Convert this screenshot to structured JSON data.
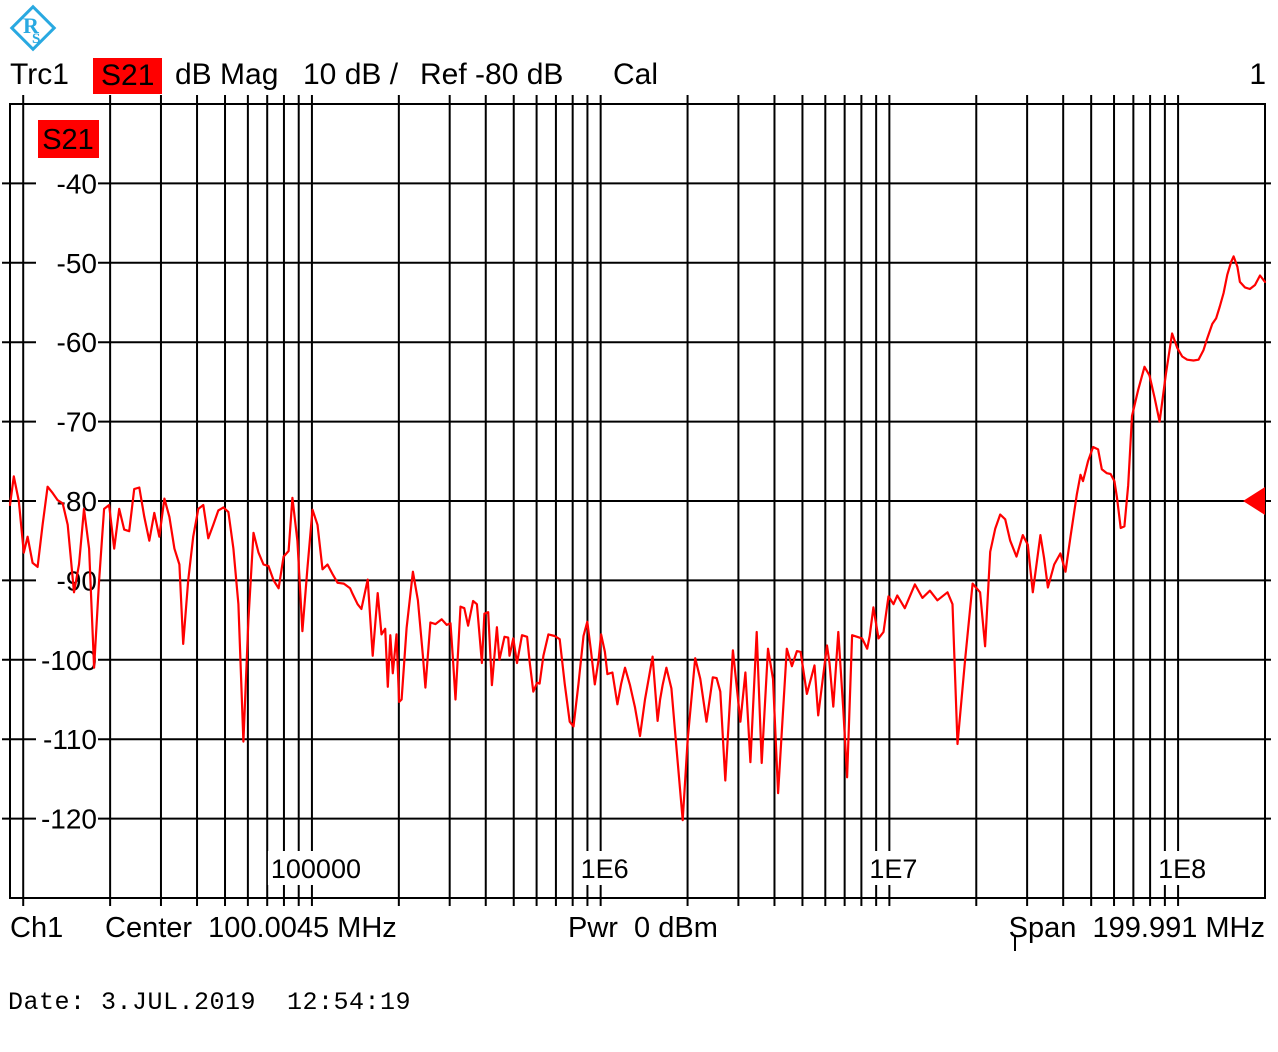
{
  "logo": {
    "name": "rohde-schwarz-logo",
    "color": "#29a9e1"
  },
  "header": {
    "trace_label": "Trc1",
    "parameter": "S21",
    "format": "dB Mag",
    "scale": "10 dB /",
    "reference": "Ref -80 dB",
    "cal_flag": "Cal",
    "trace_number": "1"
  },
  "plot": {
    "in_plot_label": "S21",
    "ref_marker": {
      "type": "ref-level-arrow",
      "level_db": -80
    }
  },
  "footer": {
    "channel": "Ch1",
    "center": "Center  100.0045 MHz",
    "power": "Pwr  0 dBm",
    "span": "Span  199.991 MHz"
  },
  "statusbar": {
    "date": "Date: 3.JUL.2019  12:54:19"
  },
  "colors": {
    "trace": "#ff0000",
    "grid": "#000000",
    "background": "#ffffff",
    "label_chip_bg": "#ff0000",
    "marker": "#ff0000",
    "logo_blue": "#29a9e1"
  },
  "chart_data": {
    "type": "line",
    "title": "Trc1 S21 dB Mag 10 dB / Ref -80 dB Cal",
    "x_axis": {
      "scale": "log",
      "unit": "Hz",
      "start_hz": 9000,
      "stop_hz": 200000000,
      "center": "100.0045 MHz",
      "span": "199.991 MHz",
      "tick_labels": [
        {
          "f": 100000,
          "text": "100000"
        },
        {
          "f": 1000000,
          "text": "1E6"
        },
        {
          "f": 10000000,
          "text": "1E7"
        },
        {
          "f": 100000000,
          "text": "1E8"
        }
      ],
      "minor_grid": "decades 2-9"
    },
    "y_axis": {
      "unit": "dB",
      "top_db": -30,
      "bottom_db": -130,
      "step_db": 10,
      "ref_level_db": -80,
      "tick_labels": [
        "-40",
        "-50",
        "-60",
        "-70",
        "-80",
        "-90",
        "-100",
        "-110",
        "-120"
      ]
    },
    "grid": true,
    "legend": "none",
    "series": [
      {
        "name": "S21",
        "color": "#ff0000",
        "x_encoding": "fraction along log axis from 9 kHz to 200 MHz",
        "points": [
          [
            0.0,
            -80.5
          ],
          [
            0.003,
            -76.9
          ],
          [
            0.007,
            -80.0
          ],
          [
            0.011,
            -86.5
          ],
          [
            0.014,
            -84.5
          ],
          [
            0.018,
            -87.8
          ],
          [
            0.022,
            -88.3
          ],
          [
            0.026,
            -83.0
          ],
          [
            0.03,
            -78.2
          ],
          [
            0.034,
            -79.0
          ],
          [
            0.038,
            -79.9
          ],
          [
            0.042,
            -80.3
          ],
          [
            0.046,
            -83.0
          ],
          [
            0.051,
            -91.5
          ],
          [
            0.055,
            -88.0
          ],
          [
            0.059,
            -81.0
          ],
          [
            0.063,
            -86.0
          ],
          [
            0.067,
            -101.0
          ],
          [
            0.071,
            -90.0
          ],
          [
            0.075,
            -81.0
          ],
          [
            0.079,
            -80.5
          ],
          [
            0.083,
            -86.0
          ],
          [
            0.087,
            -81.0
          ],
          [
            0.091,
            -83.6
          ],
          [
            0.095,
            -83.8
          ],
          [
            0.099,
            -78.5
          ],
          [
            0.103,
            -78.3
          ],
          [
            0.107,
            -82.0
          ],
          [
            0.111,
            -85.0
          ],
          [
            0.115,
            -81.5
          ],
          [
            0.119,
            -84.5
          ],
          [
            0.123,
            -79.7
          ],
          [
            0.127,
            -82.0
          ],
          [
            0.131,
            -86.0
          ],
          [
            0.135,
            -88.0
          ],
          [
            0.138,
            -98.0
          ],
          [
            0.142,
            -90.0
          ],
          [
            0.146,
            -84.5
          ],
          [
            0.15,
            -81.0
          ],
          [
            0.154,
            -80.5
          ],
          [
            0.158,
            -84.7
          ],
          [
            0.162,
            -83.0
          ],
          [
            0.166,
            -81.2
          ],
          [
            0.17,
            -80.8
          ],
          [
            0.174,
            -81.4
          ],
          [
            0.178,
            -86.0
          ],
          [
            0.182,
            -93.0
          ],
          [
            0.186,
            -110.3
          ],
          [
            0.19,
            -95.0
          ],
          [
            0.194,
            -84.0
          ],
          [
            0.198,
            -86.5
          ],
          [
            0.202,
            -88.0
          ],
          [
            0.206,
            -88.2
          ],
          [
            0.21,
            -90.0
          ],
          [
            0.214,
            -91.0
          ],
          [
            0.218,
            -87.0
          ],
          [
            0.222,
            -86.3
          ],
          [
            0.225,
            -79.6
          ],
          [
            0.229,
            -85.0
          ],
          [
            0.233,
            -96.4
          ],
          [
            0.237,
            -88.5
          ],
          [
            0.241,
            -81.1
          ],
          [
            0.245,
            -83.0
          ],
          [
            0.249,
            -88.6
          ],
          [
            0.253,
            -88.0
          ],
          [
            0.257,
            -89.2
          ],
          [
            0.261,
            -90.3
          ],
          [
            0.266,
            -90.4
          ],
          [
            0.271,
            -91.0
          ],
          [
            0.273,
            -91.7
          ],
          [
            0.277,
            -93.0
          ],
          [
            0.28,
            -93.6
          ],
          [
            0.285,
            -89.9
          ],
          [
            0.289,
            -99.5
          ],
          [
            0.293,
            -91.6
          ],
          [
            0.296,
            -96.8
          ],
          [
            0.299,
            -96.1
          ],
          [
            0.301,
            -103.4
          ],
          [
            0.303,
            -96.9
          ],
          [
            0.305,
            -101.7
          ],
          [
            0.308,
            -96.8
          ],
          [
            0.31,
            -105.3
          ],
          [
            0.312,
            -105.0
          ],
          [
            0.316,
            -96.0
          ],
          [
            0.321,
            -88.9
          ],
          [
            0.325,
            -92.5
          ],
          [
            0.329,
            -99.5
          ],
          [
            0.331,
            -103.5
          ],
          [
            0.335,
            -95.3
          ],
          [
            0.339,
            -95.5
          ],
          [
            0.344,
            -94.9
          ],
          [
            0.348,
            -95.6
          ],
          [
            0.351,
            -95.4
          ],
          [
            0.353,
            -100.0
          ],
          [
            0.355,
            -105.0
          ],
          [
            0.359,
            -93.3
          ],
          [
            0.362,
            -93.5
          ],
          [
            0.365,
            -95.7
          ],
          [
            0.369,
            -92.6
          ],
          [
            0.372,
            -93.0
          ],
          [
            0.376,
            -100.4
          ],
          [
            0.378,
            -94.2
          ],
          [
            0.381,
            -94.0
          ],
          [
            0.384,
            -103.2
          ],
          [
            0.388,
            -95.9
          ],
          [
            0.39,
            -100.0
          ],
          [
            0.394,
            -97.1
          ],
          [
            0.397,
            -97.2
          ],
          [
            0.398,
            -99.5
          ],
          [
            0.401,
            -97.3
          ],
          [
            0.404,
            -100.4
          ],
          [
            0.408,
            -96.9
          ],
          [
            0.412,
            -97.1
          ],
          [
            0.414,
            -100.2
          ],
          [
            0.417,
            -104.0
          ],
          [
            0.42,
            -102.9
          ],
          [
            0.422,
            -103.0
          ],
          [
            0.425,
            -99.5
          ],
          [
            0.429,
            -96.8
          ],
          [
            0.434,
            -97.0
          ],
          [
            0.438,
            -97.4
          ],
          [
            0.442,
            -103.0
          ],
          [
            0.446,
            -107.8
          ],
          [
            0.449,
            -108.4
          ],
          [
            0.453,
            -103.0
          ],
          [
            0.457,
            -97.0
          ],
          [
            0.46,
            -95.2
          ],
          [
            0.463,
            -99.0
          ],
          [
            0.466,
            -103.1
          ],
          [
            0.469,
            -100.0
          ],
          [
            0.471,
            -96.8
          ],
          [
            0.474,
            -99.0
          ],
          [
            0.476,
            -101.8
          ],
          [
            0.48,
            -101.6
          ],
          [
            0.484,
            -105.6
          ],
          [
            0.487,
            -103.0
          ],
          [
            0.49,
            -101.0
          ],
          [
            0.494,
            -103.2
          ],
          [
            0.498,
            -106.0
          ],
          [
            0.502,
            -109.6
          ],
          [
            0.506,
            -105.0
          ],
          [
            0.512,
            -99.6
          ],
          [
            0.516,
            -107.7
          ],
          [
            0.518,
            -105.0
          ],
          [
            0.52,
            -103.2
          ],
          [
            0.523,
            -101.0
          ],
          [
            0.527,
            -103.6
          ],
          [
            0.531,
            -111.0
          ],
          [
            0.536,
            -120.2
          ],
          [
            0.54,
            -110.0
          ],
          [
            0.546,
            -99.8
          ],
          [
            0.55,
            -102.4
          ],
          [
            0.555,
            -107.8
          ],
          [
            0.56,
            -102.2
          ],
          [
            0.563,
            -102.3
          ],
          [
            0.566,
            -104.0
          ],
          [
            0.57,
            -115.2
          ],
          [
            0.576,
            -98.8
          ],
          [
            0.582,
            -107.8
          ],
          [
            0.586,
            -101.6
          ],
          [
            0.59,
            -112.9
          ],
          [
            0.595,
            -96.5
          ],
          [
            0.599,
            -113.0
          ],
          [
            0.604,
            -98.6
          ],
          [
            0.608,
            -102.4
          ],
          [
            0.612,
            -116.8
          ],
          [
            0.619,
            -98.6
          ],
          [
            0.623,
            -100.8
          ],
          [
            0.627,
            -98.9
          ],
          [
            0.63,
            -99.0
          ],
          [
            0.635,
            -104.3
          ],
          [
            0.641,
            -100.7
          ],
          [
            0.644,
            -107.0
          ],
          [
            0.651,
            -98.2
          ],
          [
            0.653,
            -100.4
          ],
          [
            0.656,
            -105.9
          ],
          [
            0.66,
            -96.5
          ],
          [
            0.664,
            -106.3
          ],
          [
            0.667,
            -114.8
          ],
          [
            0.671,
            -96.9
          ],
          [
            0.675,
            -97.1
          ],
          [
            0.679,
            -97.3
          ],
          [
            0.683,
            -98.6
          ],
          [
            0.685,
            -97.0
          ],
          [
            0.688,
            -93.4
          ],
          [
            0.692,
            -97.3
          ],
          [
            0.696,
            -96.5
          ],
          [
            0.7,
            -92.0
          ],
          [
            0.704,
            -93.0
          ],
          [
            0.707,
            -91.9
          ],
          [
            0.713,
            -93.5
          ],
          [
            0.721,
            -90.5
          ],
          [
            0.727,
            -92.2
          ],
          [
            0.733,
            -91.3
          ],
          [
            0.739,
            -92.5
          ],
          [
            0.747,
            -91.5
          ],
          [
            0.751,
            -93.0
          ],
          [
            0.755,
            -110.6
          ],
          [
            0.761,
            -100.0
          ],
          [
            0.767,
            -90.4
          ],
          [
            0.773,
            -91.5
          ],
          [
            0.777,
            -98.3
          ],
          [
            0.781,
            -86.4
          ],
          [
            0.785,
            -83.5
          ],
          [
            0.789,
            -81.7
          ],
          [
            0.793,
            -82.3
          ],
          [
            0.797,
            -85.0
          ],
          [
            0.802,
            -87.0
          ],
          [
            0.807,
            -84.3
          ],
          [
            0.811,
            -85.5
          ],
          [
            0.815,
            -91.5
          ],
          [
            0.821,
            -84.3
          ],
          [
            0.824,
            -87.2
          ],
          [
            0.827,
            -90.9
          ],
          [
            0.832,
            -88.0
          ],
          [
            0.837,
            -86.6
          ],
          [
            0.841,
            -88.9
          ],
          [
            0.845,
            -84.5
          ],
          [
            0.85,
            -79.2
          ],
          [
            0.853,
            -76.7
          ],
          [
            0.855,
            -77.5
          ],
          [
            0.859,
            -75.0
          ],
          [
            0.863,
            -73.2
          ],
          [
            0.867,
            -73.5
          ],
          [
            0.87,
            -76.0
          ],
          [
            0.874,
            -76.5
          ],
          [
            0.877,
            -76.6
          ],
          [
            0.88,
            -77.5
          ],
          [
            0.882,
            -79.5
          ],
          [
            0.885,
            -83.4
          ],
          [
            0.888,
            -83.2
          ],
          [
            0.891,
            -78.0
          ],
          [
            0.894,
            -69.3
          ],
          [
            0.899,
            -66.0
          ],
          [
            0.904,
            -63.1
          ],
          [
            0.908,
            -64.2
          ],
          [
            0.912,
            -67.0
          ],
          [
            0.916,
            -70.0
          ],
          [
            0.921,
            -64.0
          ],
          [
            0.926,
            -58.9
          ],
          [
            0.93,
            -60.7
          ],
          [
            0.934,
            -61.8
          ],
          [
            0.938,
            -62.2
          ],
          [
            0.943,
            -62.3
          ],
          [
            0.947,
            -62.2
          ],
          [
            0.951,
            -61.0
          ],
          [
            0.954,
            -59.5
          ],
          [
            0.958,
            -57.7
          ],
          [
            0.961,
            -57.0
          ],
          [
            0.964,
            -55.5
          ],
          [
            0.967,
            -53.8
          ],
          [
            0.97,
            -51.5
          ],
          [
            0.973,
            -49.9
          ],
          [
            0.975,
            -49.2
          ],
          [
            0.978,
            -50.5
          ],
          [
            0.98,
            -52.4
          ],
          [
            0.984,
            -53.1
          ],
          [
            0.988,
            -53.3
          ],
          [
            0.992,
            -52.8
          ],
          [
            0.996,
            -51.6
          ],
          [
            1.0,
            -52.4
          ]
        ]
      }
    ]
  }
}
